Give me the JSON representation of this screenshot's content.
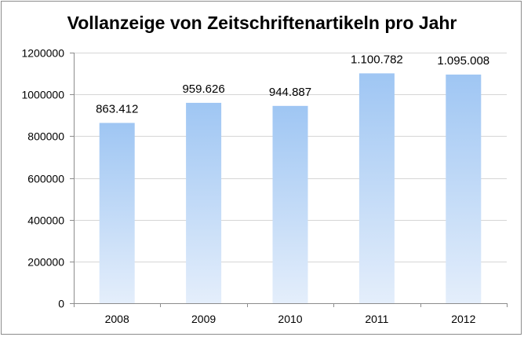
{
  "chart_data": {
    "type": "bar",
    "title": "Vollanzeige von Zeitschriftenartikeln pro Jahr",
    "categories": [
      "2008",
      "2009",
      "2010",
      "2011",
      "2012"
    ],
    "values": [
      863412,
      959626,
      944887,
      1100782,
      1095008
    ],
    "data_labels": [
      "863.412",
      "959.626",
      "944.887",
      "1.100.782",
      "1.095.008"
    ],
    "ylim": [
      0,
      1200000
    ],
    "yticks": [
      0,
      200000,
      400000,
      600000,
      800000,
      1000000,
      1200000
    ],
    "ytick_labels": [
      "0",
      "200000",
      "400000",
      "600000",
      "800000",
      "1000000",
      "1200000"
    ],
    "grid": true,
    "legend": "none",
    "colors": {
      "bar_top": "#9fc6f3",
      "bar_bottom": "#e4eefb",
      "gridline": "#d6d6d6",
      "axis": "#8c8c8c"
    }
  }
}
